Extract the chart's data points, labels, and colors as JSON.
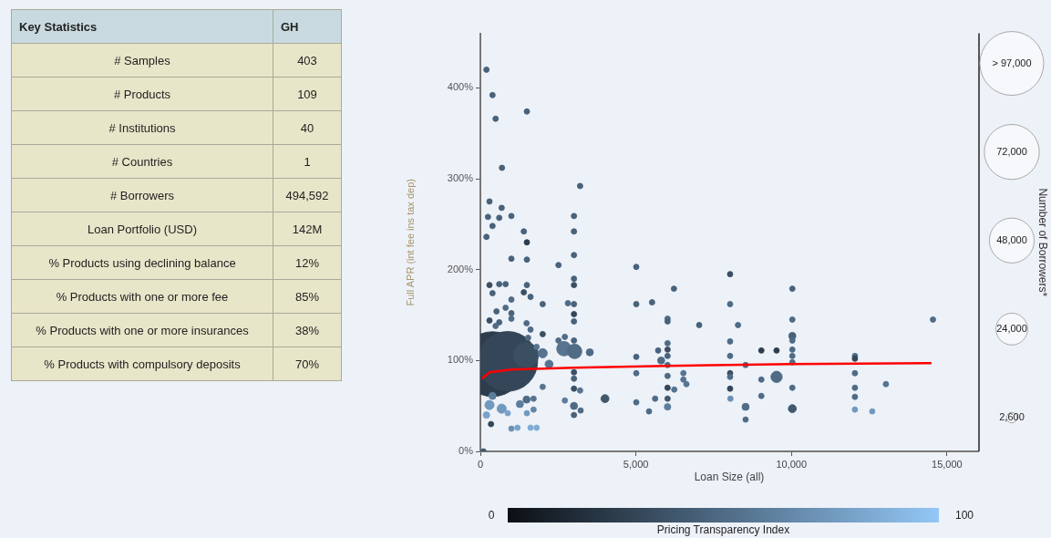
{
  "chart_data": [
    {
      "type": "other",
      "title": "Key Statistics",
      "categories": [
        "# Samples",
        "# Products",
        "# Institutions",
        "# Countries",
        "# Borrowers",
        "Loan Portfolio (USD)",
        "% Products using declining balance",
        "% Products with one or more fee",
        "% Products with one or more insurances",
        "% Products with compulsory deposits"
      ],
      "annotations": [
        "GH",
        "403",
        "109",
        "40",
        "1",
        "494,592",
        "142M",
        "12%",
        "85%",
        "38%",
        "70%"
      ]
    },
    {
      "type": "bubble",
      "xlabel": "Loan Size (all)",
      "ylabel": "Full APR (int fee ins tax dep)",
      "legend_title": "Number of Borrowers*",
      "clabel": "Pricing Transparency Index",
      "annotations": [
        "0",
        "100"
      ],
      "xlim": [
        0,
        16000
      ],
      "xticks": [
        0,
        {
          "value": 5000,
          "label": "5,000"
        },
        {
          "value": 10000,
          "label": "10,000"
        },
        {
          "value": 15000,
          "label": "15,000"
        }
      ],
      "ylim": [
        0,
        460
      ],
      "yticks": [
        {
          "value": 0,
          "label": "0%"
        },
        {
          "value": 100,
          "label": "100%"
        },
        {
          "value": 200,
          "label": "200%"
        },
        {
          "value": 300,
          "label": "300%"
        },
        {
          "value": 400,
          "label": "400%"
        }
      ],
      "size_legend": [
        {
          "value": 97000,
          "label": "> 97,000"
        },
        {
          "value": 72000,
          "label": "72,000"
        },
        {
          "value": 48000,
          "label": "48,000"
        },
        {
          "value": 24000,
          "label": "24,000"
        },
        {
          "value": 2600,
          "label": "2,600"
        }
      ],
      "series": [
        {
          "type": "bubble",
          "x": [
            390,
            880,
            1466,
            195,
            390,
            490,
            1495,
            694,
            3205,
            293,
            684,
            244,
            606,
            390,
            997,
            3009,
            195,
            1397,
            3009,
            1495,
            3009,
            997,
            1495,
            2511,
            5012,
            293,
            606,
            811,
            1495,
            3009,
            3009,
            6223,
            390,
            1397,
            1612,
            997,
            2003,
            2814,
            3009,
            5012,
            5520,
            518,
            811,
            997,
            293,
            606,
            997,
            3009,
            3009,
            6018,
            6018,
            1485,
            1612,
            7034,
            2003,
            490,
            2511,
            2716,
            3009,
            2687,
            3029,
            3517,
            2003,
            2208,
            5012,
            5715,
            6018,
            6018,
            6018,
            5813,
            5012,
            3009,
            3009,
            3009,
            3205,
            6018,
            6018,
            6018,
            6526,
            6526,
            6624,
            6233,
            4006,
            2716,
            3009,
            3009,
            3224,
            5012,
            5618,
            5422,
            6018,
            6018,
            342,
            997,
            1192,
            1612,
            1808,
            195,
            293,
            684,
            880,
            1495,
            1710,
            1270,
            1485,
            1710,
            2003,
            390,
            98,
            1808,
            1534,
            8028,
            8028,
            8282,
            8028,
            8028,
            8526,
            8028,
            8028,
            8028,
            8038,
            8526,
            8526,
            9033,
            9522,
            9033,
            9033,
            9522,
            10029,
            10029,
            10029,
            10029,
            10029,
            10029,
            10029,
            10029,
            10029,
            12041,
            12041,
            12041,
            12041,
            12041,
            12041,
            12598,
            13037,
            14550
          ],
          "values": [
            96,
            99,
            106,
            420,
            392,
            366,
            374,
            312,
            292,
            275,
            268,
            258,
            257,
            248,
            259,
            259,
            236,
            242,
            242,
            230,
            216,
            212,
            211,
            205,
            203,
            183,
            184,
            184,
            183,
            190,
            183,
            179,
            174,
            175,
            170,
            167,
            162,
            163,
            162,
            162,
            164,
            154,
            158,
            152,
            144,
            142,
            146,
            151,
            143,
            146,
            143,
            141,
            134,
            139,
            129,
            138,
            122,
            126,
            122,
            113,
            110,
            109,
            108,
            96,
            104,
            111,
            119,
            112,
            105,
            100,
            86,
            87,
            80,
            69,
            67,
            95,
            83,
            70,
            86,
            79,
            74,
            68,
            58,
            56,
            50,
            40,
            45,
            54,
            58,
            44,
            58,
            49,
            30,
            25,
            26,
            26,
            26,
            40,
            51,
            47,
            42,
            42,
            46,
            52,
            57,
            58,
            71,
            61,
            0,
            115,
            125,
            195,
            162,
            139,
            121,
            105,
            95,
            86,
            82,
            69,
            58,
            49,
            35,
            111,
            111,
            79,
            61,
            82,
            179,
            145,
            127,
            122,
            112,
            105,
            98,
            70,
            47,
            105,
            102,
            86,
            60,
            70,
            46,
            44,
            74,
            145
          ],
          "sizes": [
            100000,
            85000,
            15000,
            700,
            700,
            700,
            700,
            700,
            700,
            700,
            700,
            700,
            700,
            700,
            700,
            700,
            700,
            700,
            700,
            700,
            700,
            700,
            700,
            700,
            700,
            700,
            700,
            700,
            700,
            700,
            700,
            700,
            700,
            700,
            700,
            700,
            700,
            700,
            700,
            700,
            700,
            700,
            700,
            700,
            700,
            700,
            700,
            700,
            700,
            700,
            700,
            700,
            700,
            700,
            700,
            700,
            700,
            700,
            700,
            5000,
            5000,
            1200,
            2000,
            1500,
            700,
            700,
            700,
            700,
            700,
            1200,
            700,
            700,
            700,
            700,
            700,
            700,
            700,
            700,
            700,
            700,
            700,
            700,
            1500,
            700,
            1200,
            700,
            700,
            700,
            700,
            700,
            700,
            1000,
            700,
            700,
            700,
            700,
            700,
            1000,
            2000,
            2000,
            700,
            700,
            700,
            1200,
            1200,
            700,
            700,
            1200,
            700,
            700,
            700,
            700,
            700,
            700,
            700,
            700,
            700,
            700,
            700,
            700,
            700,
            1200,
            700,
            700,
            700,
            700,
            700,
            3000,
            700,
            700,
            1200,
            700,
            700,
            700,
            700,
            700,
            1500,
            700,
            700,
            700,
            700,
            700,
            700,
            700,
            700,
            700
          ],
          "colors": [
            "#2d3d4d",
            "#344658",
            "#3b4f63",
            "#48627a",
            "#48627a",
            "#48627a",
            "#48627a",
            "#48627a",
            "#48627a",
            "#48627a",
            "#48627a",
            "#48627a",
            "#48627a",
            "#48627a",
            "#48627a",
            "#48627a",
            "#48627a",
            "#48627a",
            "#48627a",
            "#2d3d4d",
            "#48627a",
            "#48627a",
            "#48627a",
            "#48627a",
            "#48627a",
            "#3b4f63",
            "#48627a",
            "#48627a",
            "#48627a",
            "#48627a",
            "#3b4f63",
            "#48627a",
            "#48627a",
            "#3b4f63",
            "#48627a",
            "#4f6b85",
            "#48627a",
            "#4f6b85",
            "#48627a",
            "#48627a",
            "#48627a",
            "#48627a",
            "#4f6b85",
            "#48627a",
            "#3b4f63",
            "#48627a",
            "#4f6b85",
            "#344658",
            "#48627a",
            "#4f6b85",
            "#48627a",
            "#4f6b85",
            "#4f6b85",
            "#48627a",
            "#3b4f63",
            "#4f6b85",
            "#4f6b85",
            "#4f6b85",
            "#48627a",
            "#567490",
            "#4f6b85",
            "#4f6b85",
            "#567490",
            "#567490",
            "#48627a",
            "#48627a",
            "#4f6b85",
            "#3b4f63",
            "#48627a",
            "#4f6b85",
            "#4f6b85",
            "#3b4f63",
            "#48627a",
            "#3b4f63",
            "#567490",
            "#4f6b85",
            "#4f6b85",
            "#344658",
            "#567490",
            "#567490",
            "#567490",
            "#567490",
            "#41596e",
            "#5d7d9c",
            "#4f6b85",
            "#48627a",
            "#4f6b85",
            "#4f6b85",
            "#4f6b85",
            "#4f6b85",
            "#41596e",
            "#5d7d9c",
            "#344658",
            "#6a90b2",
            "#78a2c9",
            "#7fabd4",
            "#7fabd4",
            "#78a2c9",
            "#7199be",
            "#7199be",
            "#78a2c9",
            "#7199be",
            "#6387a7",
            "#5d7d9c",
            "#4f6b85",
            "#567490",
            "#567490",
            "#5d7d9c",
            "#41596e",
            "#567490",
            "#4f6b85",
            "#3b4f63",
            "#4f6b85",
            "#4f6b85",
            "#4f6b85",
            "#4f6b85",
            "#4f6b85",
            "#3b4f63",
            "#4f6b85",
            "#344658",
            "#6a90b2",
            "#4f6b85",
            "#4f6b85",
            "#2d3d4d",
            "#2d3d4d",
            "#4f6b85",
            "#4f6b85",
            "#4f6b85",
            "#48627a",
            "#4f6b85",
            "#48627a",
            "#4f6b85",
            "#4f6b85",
            "#4f6b85",
            "#4f6b85",
            "#4f6b85",
            "#41596e",
            "#4f6b85",
            "#344658",
            "#4f6b85",
            "#4f6b85",
            "#4f6b85",
            "#7199be",
            "#7199be",
            "#567490",
            "#4f6b85"
          ],
          "marker": "circle"
        },
        {
          "type": "line",
          "color": "#ff0000",
          "x": [
            50,
            300,
            1000,
            3000,
            6000,
            10000,
            14500
          ],
          "values": [
            80,
            87,
            90,
            92,
            94,
            96,
            97
          ]
        }
      ]
    }
  ]
}
